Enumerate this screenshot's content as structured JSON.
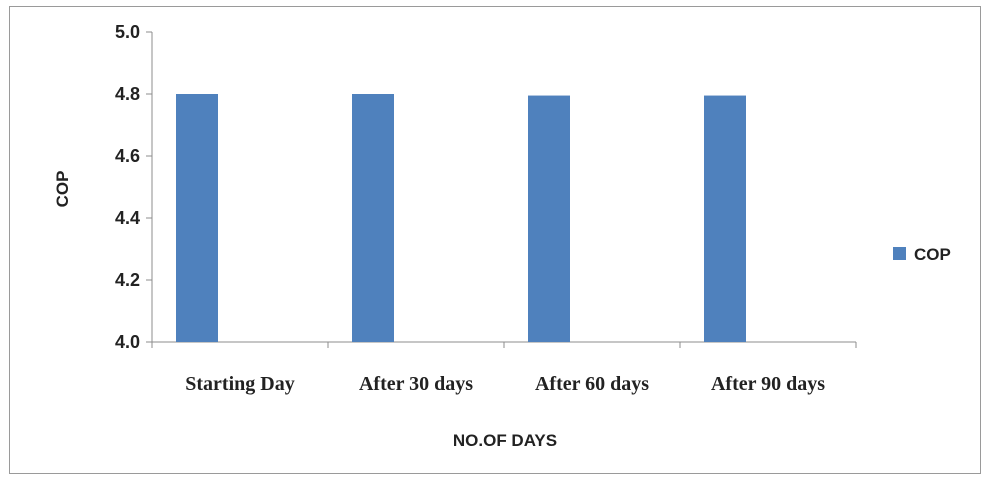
{
  "chart_data": {
    "type": "bar",
    "categories": [
      "Starting Day",
      "After 30 days",
      "After 60 days",
      "After 90 days"
    ],
    "series": [
      {
        "name": "COP",
        "values": [
          4.8,
          4.8,
          4.795,
          4.795
        ],
        "color": "#4f81bd"
      }
    ],
    "xlabel": "NO.OF DAYS",
    "ylabel": "COP",
    "ylim": [
      4.0,
      5.0
    ],
    "yticks": [
      "4.0",
      "4.2",
      "4.4",
      "4.6",
      "4.8",
      "5.0"
    ],
    "grid": false,
    "legend_position": "right"
  }
}
